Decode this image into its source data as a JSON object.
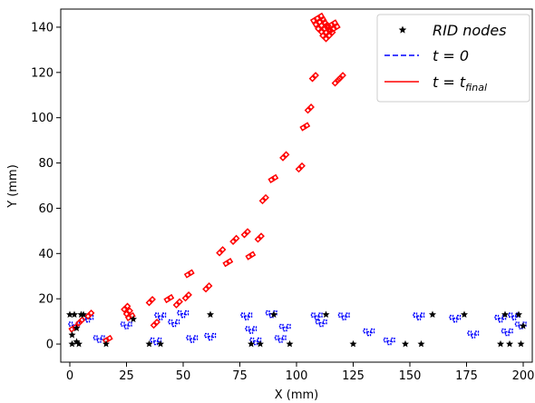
{
  "chart_data": {
    "type": "scatter",
    "xlabel": "X (mm)",
    "ylabel": "Y (mm)",
    "xlim": [
      -4,
      204
    ],
    "ylim": [
      -8,
      148
    ],
    "xticks": [
      0,
      25,
      50,
      75,
      100,
      125,
      150,
      175,
      200
    ],
    "yticks": [
      0,
      20,
      40,
      60,
      80,
      100,
      120,
      140
    ],
    "grid": false,
    "legend_position": "top-right",
    "legend": [
      {
        "label_main": "RID nodes",
        "label_sub": "",
        "marker": "star",
        "color": "#000000"
      },
      {
        "label_main": "t = 0",
        "label_sub": "",
        "marker": "dashed-line",
        "color": "#0000ff"
      },
      {
        "label_main": "t = t",
        "label_sub": "final",
        "marker": "solid-line",
        "color": "#ff0000"
      }
    ],
    "series": [
      {
        "name": "RID nodes",
        "marker": "star",
        "color": "#000000",
        "x": [
          0,
          1,
          2,
          3,
          4,
          6,
          1,
          3,
          5,
          16,
          28,
          35,
          40,
          62,
          80,
          84,
          90,
          97,
          113,
          125,
          148,
          155,
          160,
          174,
          190,
          192,
          194,
          198,
          199,
          200
        ],
        "y": [
          13,
          0,
          13,
          7,
          0,
          13,
          4,
          1,
          13,
          0,
          11,
          0,
          0,
          13,
          0,
          0,
          13,
          0,
          13,
          0,
          0,
          0,
          13,
          13,
          0,
          13,
          0,
          13,
          0,
          8
        ]
      },
      {
        "name": "t = 0",
        "color": "#0000ff",
        "style": "dashed",
        "x": [
          2,
          8,
          13,
          25,
          38,
          40,
          46,
          50,
          54,
          62,
          78,
          80,
          82,
          89,
          93,
          95,
          109,
          111,
          121,
          132,
          141,
          154,
          170,
          178,
          190,
          193,
          196,
          199
        ],
        "y": [
          8,
          11,
          2,
          8,
          1,
          12,
          9,
          13,
          2,
          3,
          12,
          6,
          1,
          13,
          2,
          7,
          12,
          9,
          12,
          5,
          1,
          12,
          11,
          4,
          11,
          5,
          12,
          8
        ]
      },
      {
        "name": "t = t final",
        "color": "#ff0000",
        "style": "solid",
        "x": [
          2,
          5,
          9,
          17,
          25,
          26,
          27,
          36,
          38,
          44,
          48,
          52,
          53,
          61,
          67,
          70,
          73,
          78,
          80,
          84,
          86,
          90,
          95,
          102,
          104,
          106,
          108,
          110,
          112,
          114,
          116,
          118,
          120
        ],
        "y": [
          7,
          10,
          13,
          2,
          16,
          14,
          12,
          19,
          9,
          20,
          18,
          21,
          31,
          25,
          41,
          36,
          46,
          49,
          39,
          47,
          64,
          73,
          83,
          78,
          96,
          104,
          118,
          143,
          140,
          137,
          140,
          116,
          118
        ]
      }
    ]
  }
}
